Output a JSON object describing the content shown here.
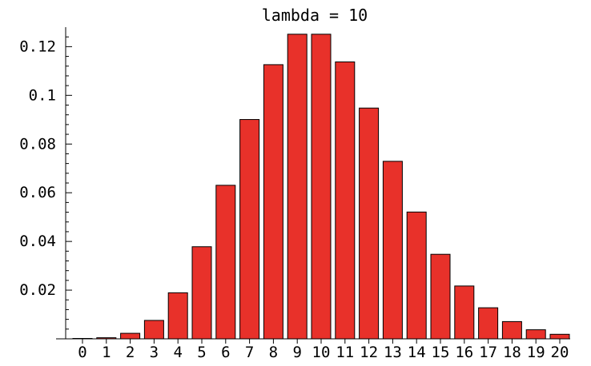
{
  "chart_data": {
    "type": "bar",
    "title": "lambda = 10",
    "xlabel": "",
    "ylabel": "",
    "categories": [
      "0",
      "1",
      "2",
      "3",
      "4",
      "5",
      "6",
      "7",
      "8",
      "9",
      "10",
      "11",
      "12",
      "13",
      "14",
      "15",
      "16",
      "17",
      "18",
      "19",
      "20"
    ],
    "values": [
      4.5e-05,
      0.00045,
      0.00227,
      0.00757,
      0.01892,
      0.03783,
      0.06306,
      0.09008,
      0.1126,
      0.12511,
      0.12511,
      0.11374,
      0.09478,
      0.07291,
      0.05208,
      0.03472,
      0.0217,
      0.01276,
      0.00709,
      0.00373,
      0.00187
    ],
    "ylim": [
      0,
      0.128
    ],
    "yticks": [
      0.02,
      0.04,
      0.06,
      0.08,
      0.1,
      0.12
    ],
    "ytick_labels": [
      "0.02",
      "0.04",
      "0.06",
      "0.08",
      "0.1",
      "0.12"
    ],
    "grid": false,
    "colors": {
      "bar": "#e8312a",
      "edge": "#000000"
    }
  }
}
